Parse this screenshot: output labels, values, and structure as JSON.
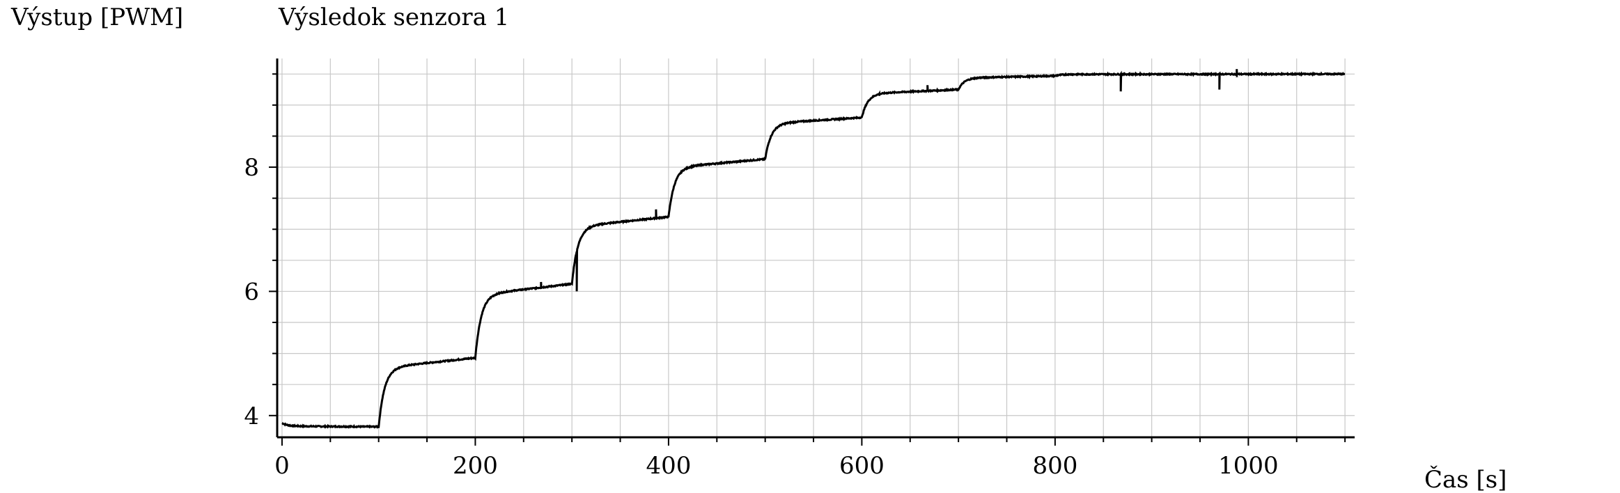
{
  "chart_data": {
    "type": "line",
    "title": "Výsledok senzora 1",
    "ylabel": "Výstup [PWM]",
    "xlabel": "Čas [s]",
    "xlim": [
      -5,
      1110
    ],
    "ylim": [
      3.65,
      9.75
    ],
    "x_ticks": [
      0,
      200,
      400,
      600,
      800,
      1000
    ],
    "y_ticks": [
      4,
      6,
      8
    ],
    "grid": true,
    "colors": {
      "line": "#000000",
      "grid": "#c8c8c8",
      "axis": "#000000"
    },
    "steps": [
      {
        "start": 0,
        "base": 3.88,
        "plateau": 3.82
      },
      {
        "start": 100,
        "base": 3.82,
        "plateau": 4.93
      },
      {
        "start": 200,
        "base": 4.93,
        "plateau": 6.12
      },
      {
        "start": 300,
        "base": 6.12,
        "plateau": 7.2
      },
      {
        "start": 400,
        "base": 7.2,
        "plateau": 8.13
      },
      {
        "start": 500,
        "base": 8.13,
        "plateau": 8.8
      },
      {
        "start": 600,
        "base": 8.8,
        "plateau": 9.25
      },
      {
        "start": 700,
        "base": 9.25,
        "plateau": 9.47
      },
      {
        "start": 800,
        "base": 9.47,
        "plateau": 9.5
      }
    ],
    "end_time": 1100,
    "spikes": [
      {
        "x": 268,
        "y": 6.15
      },
      {
        "x": 305,
        "y": 6.0
      },
      {
        "x": 387,
        "y": 7.32
      },
      {
        "x": 618,
        "y": 9.15
      },
      {
        "x": 668,
        "y": 9.32
      },
      {
        "x": 868,
        "y": 9.22
      },
      {
        "x": 970,
        "y": 9.25
      },
      {
        "x": 988,
        "y": 9.58
      }
    ]
  }
}
